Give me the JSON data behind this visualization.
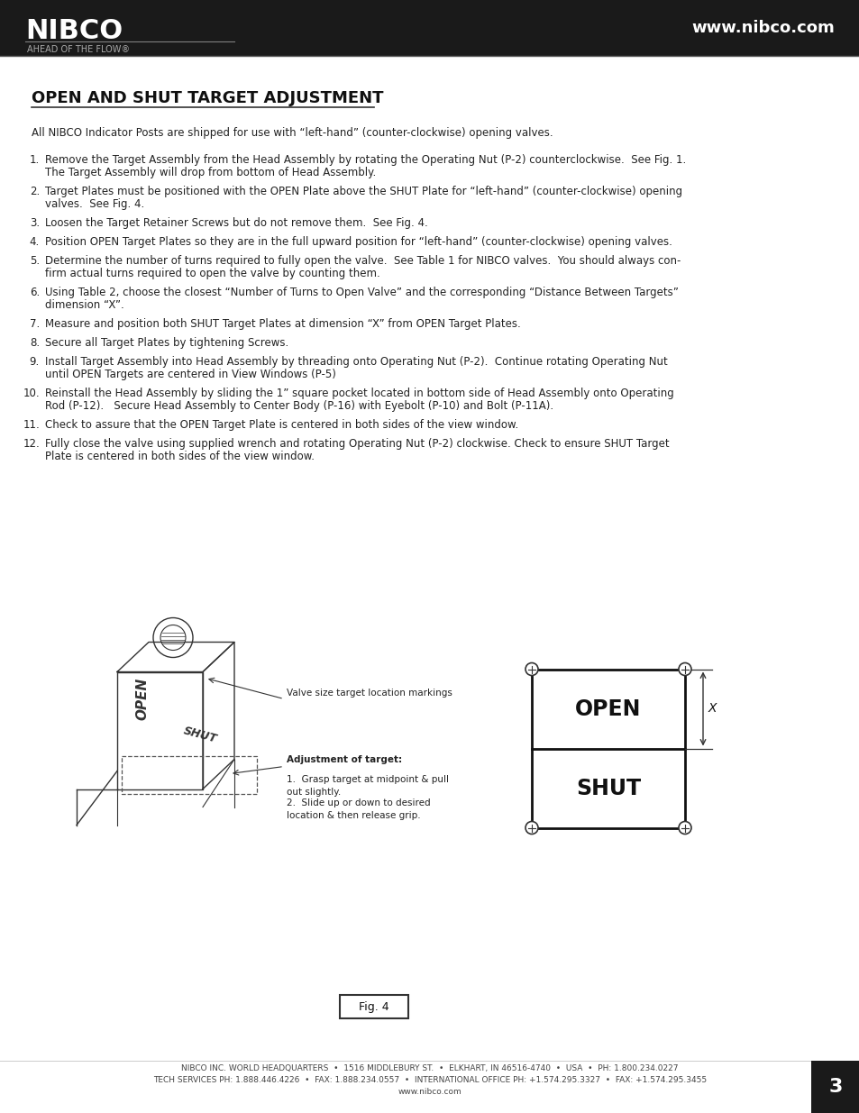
{
  "page_bg": "#ffffff",
  "header_bg": "#1a1a1a",
  "header_text_nibco": "NIBCO",
  "header_text_tagline": "AHEAD OF THE FLOW®",
  "header_text_url": "www.nibco.com",
  "section_title": "OPEN AND SHUT TARGET ADJUSTMENT",
  "intro_text": "All NIBCO Indicator Posts are shipped for use with “left-hand” (counter-clockwise) opening valves.",
  "numbered_items": [
    "Remove the Target Assembly from the Head Assembly by rotating the Operating Nut (P-2) counterclockwise.  See Fig. 1.\n    The Target Assembly will drop from bottom of Head Assembly.",
    "Target Plates must be positioned with the OPEN Plate above the SHUT Plate for “left-hand” (counter-clockwise) opening\n    valves.  See Fig. 4.",
    "Loosen the Target Retainer Screws but do not remove them.  See Fig. 4.",
    "Position OPEN Target Plates so they are in the full upward position for “left-hand” (counter-clockwise) opening valves.",
    "Determine the number of turns required to fully open the valve.  See Table 1 for NIBCO valves.  You should always con-\n    firm actual turns required to open the valve by counting them.",
    "Using Table 2, choose the closest “Number of Turns to Open Valve” and the corresponding “Distance Between Targets”\n    dimension “X”.",
    "Measure and position both SHUT Target Plates at dimension “X” from OPEN Target Plates.",
    "Secure all Target Plates by tightening Screws.",
    "Install Target Assembly into Head Assembly by threading onto Operating Nut (P-2).  Continue rotating Operating Nut\n    until OPEN Targets are centered in View Windows (P-5)",
    "Reinstall the Head Assembly by sliding the 1” square pocket located in bottom side of Head Assembly onto Operating\n    Rod (P-12).   Secure Head Assembly to Center Body (P-16) with Eyebolt (P-10) and Bolt (P-11A).",
    "Check to assure that the OPEN Target Plate is centered in both sides of the view window.",
    "Fully close the valve using supplied wrench and rotating Operating Nut (P-2) clockwise. Check to ensure SHUT Target\n    Plate is centered in both sides of the view window."
  ],
  "fig_label": "Fig. 4",
  "callout1": "Valve size target location markings",
  "callout2_title": "Adjustment of target:",
  "callout2_item1": "1.  Grasp target at midpoint & pull\n      out slightly.",
  "callout2_item2": "2.  Slide up or down to desired\n      location & then release grip.",
  "footer_line1": "NIBCO INC. WORLD HEADQUARTERS  •  1516 MIDDLEBURY ST.  •  ELKHART, IN 46516-4740  •  USA  •  PH: 1.800.234.0227",
  "footer_line2": "TECH SERVICES PH: 1.888.446.4226  •  FAX: 1.888.234.0557  •  INTERNATIONAL OFFICE PH: +1.574.295.3327  •  FAX: +1.574.295.3455",
  "footer_line3": "www.nibco.com",
  "page_number": "3"
}
